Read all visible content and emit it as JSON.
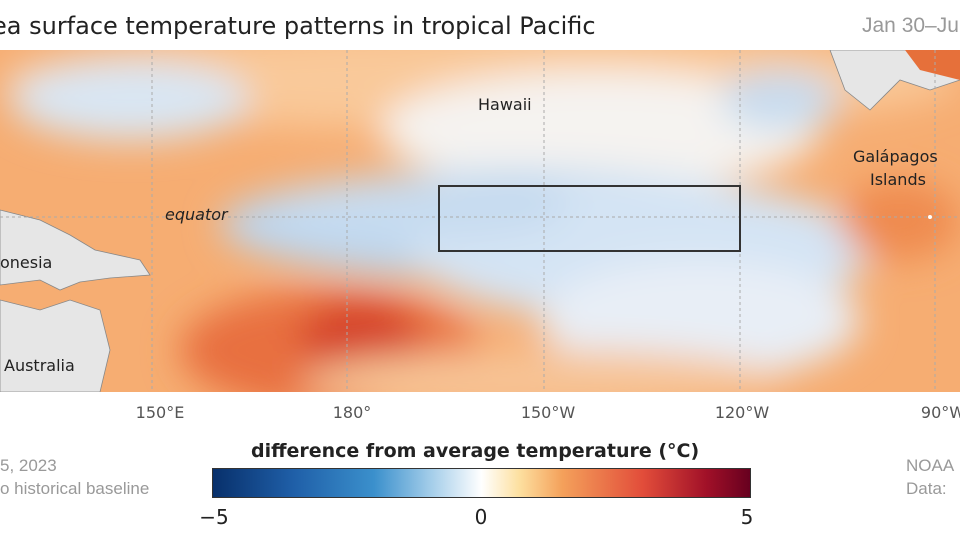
{
  "title": "ea surface temperature patterns in tropical Pacific",
  "date_range": "Jan 30–Ju",
  "map": {
    "labels": {
      "hawaii": "Hawaii",
      "galapagos_line1": "Galápagos",
      "galapagos_line2": "Islands",
      "equator": "equator",
      "indonesia": "onesia",
      "australia": "Australia"
    },
    "longitude_ticks": [
      "150°E",
      "180°",
      "150°W",
      "120°W",
      "90°W"
    ],
    "highlighted_region": "Niño 3.4 box (black rectangle)"
  },
  "colorbar": {
    "title": "difference from average temperature (°C)",
    "min_label": "−5",
    "mid_label": "0",
    "max_label": "5",
    "colors": [
      "#08306b",
      "#3b90cc",
      "#ffffff",
      "#f4a15b",
      "#67001f"
    ]
  },
  "footer": {
    "left_line1": "5, 2023",
    "left_line2": "o historical baseline",
    "right_line1": "NOAA",
    "right_line2": "Data:"
  }
}
